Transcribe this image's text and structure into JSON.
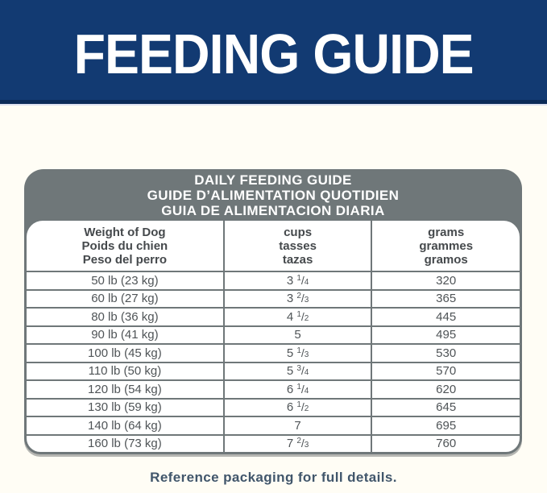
{
  "banner": {
    "title": "FEEDING GUIDE",
    "bg_color": "#123a72",
    "text_color": "#ffffff"
  },
  "table": {
    "title_lines": [
      "DAILY FEEDING GUIDE",
      "GUIDE D’ALIMENTATION QUOTIDIEN",
      "GUIA DE ALIMENTACION DIARIA"
    ],
    "header_bg_color": "#6f7779",
    "columns": [
      {
        "id": "weight",
        "lines": [
          "Weight of Dog",
          "Poids du chien",
          "Peso del perro"
        ]
      },
      {
        "id": "cups",
        "lines": [
          "cups",
          "tasses",
          "tazas"
        ]
      },
      {
        "id": "grams",
        "lines": [
          "grams",
          "grammes",
          "gramos"
        ]
      }
    ],
    "rows": [
      {
        "weight": "50 lb (23 kg)",
        "cups_whole": "3",
        "cups_num": "1",
        "cups_den": "4",
        "grams": "320"
      },
      {
        "weight": "60 lb (27 kg)",
        "cups_whole": "3",
        "cups_num": "2",
        "cups_den": "3",
        "grams": "365"
      },
      {
        "weight": "80 lb (36 kg)",
        "cups_whole": "4",
        "cups_num": "1",
        "cups_den": "2",
        "grams": "445"
      },
      {
        "weight": "90 lb (41 kg)",
        "cups_whole": "5",
        "cups_num": "",
        "cups_den": "",
        "grams": "495"
      },
      {
        "weight": "100 lb (45 kg)",
        "cups_whole": "5",
        "cups_num": "1",
        "cups_den": "3",
        "grams": "530"
      },
      {
        "weight": "110 lb (50 kg)",
        "cups_whole": "5",
        "cups_num": "3",
        "cups_den": "4",
        "grams": "570"
      },
      {
        "weight": "120 lb (54 kg)",
        "cups_whole": "6",
        "cups_num": "1",
        "cups_den": "4",
        "grams": "620"
      },
      {
        "weight": "130 lb (59 kg)",
        "cups_whole": "6",
        "cups_num": "1",
        "cups_den": "2",
        "grams": "645"
      },
      {
        "weight": "140 lb (64 kg)",
        "cups_whole": "7",
        "cups_num": "",
        "cups_den": "",
        "grams": "695"
      },
      {
        "weight": "160 lb (73 kg)",
        "cups_whole": "7",
        "cups_num": "2",
        "cups_den": "3",
        "grams": "760"
      }
    ]
  },
  "footer": {
    "note": "Reference packaging for full details.",
    "text_color": "#41566b"
  }
}
